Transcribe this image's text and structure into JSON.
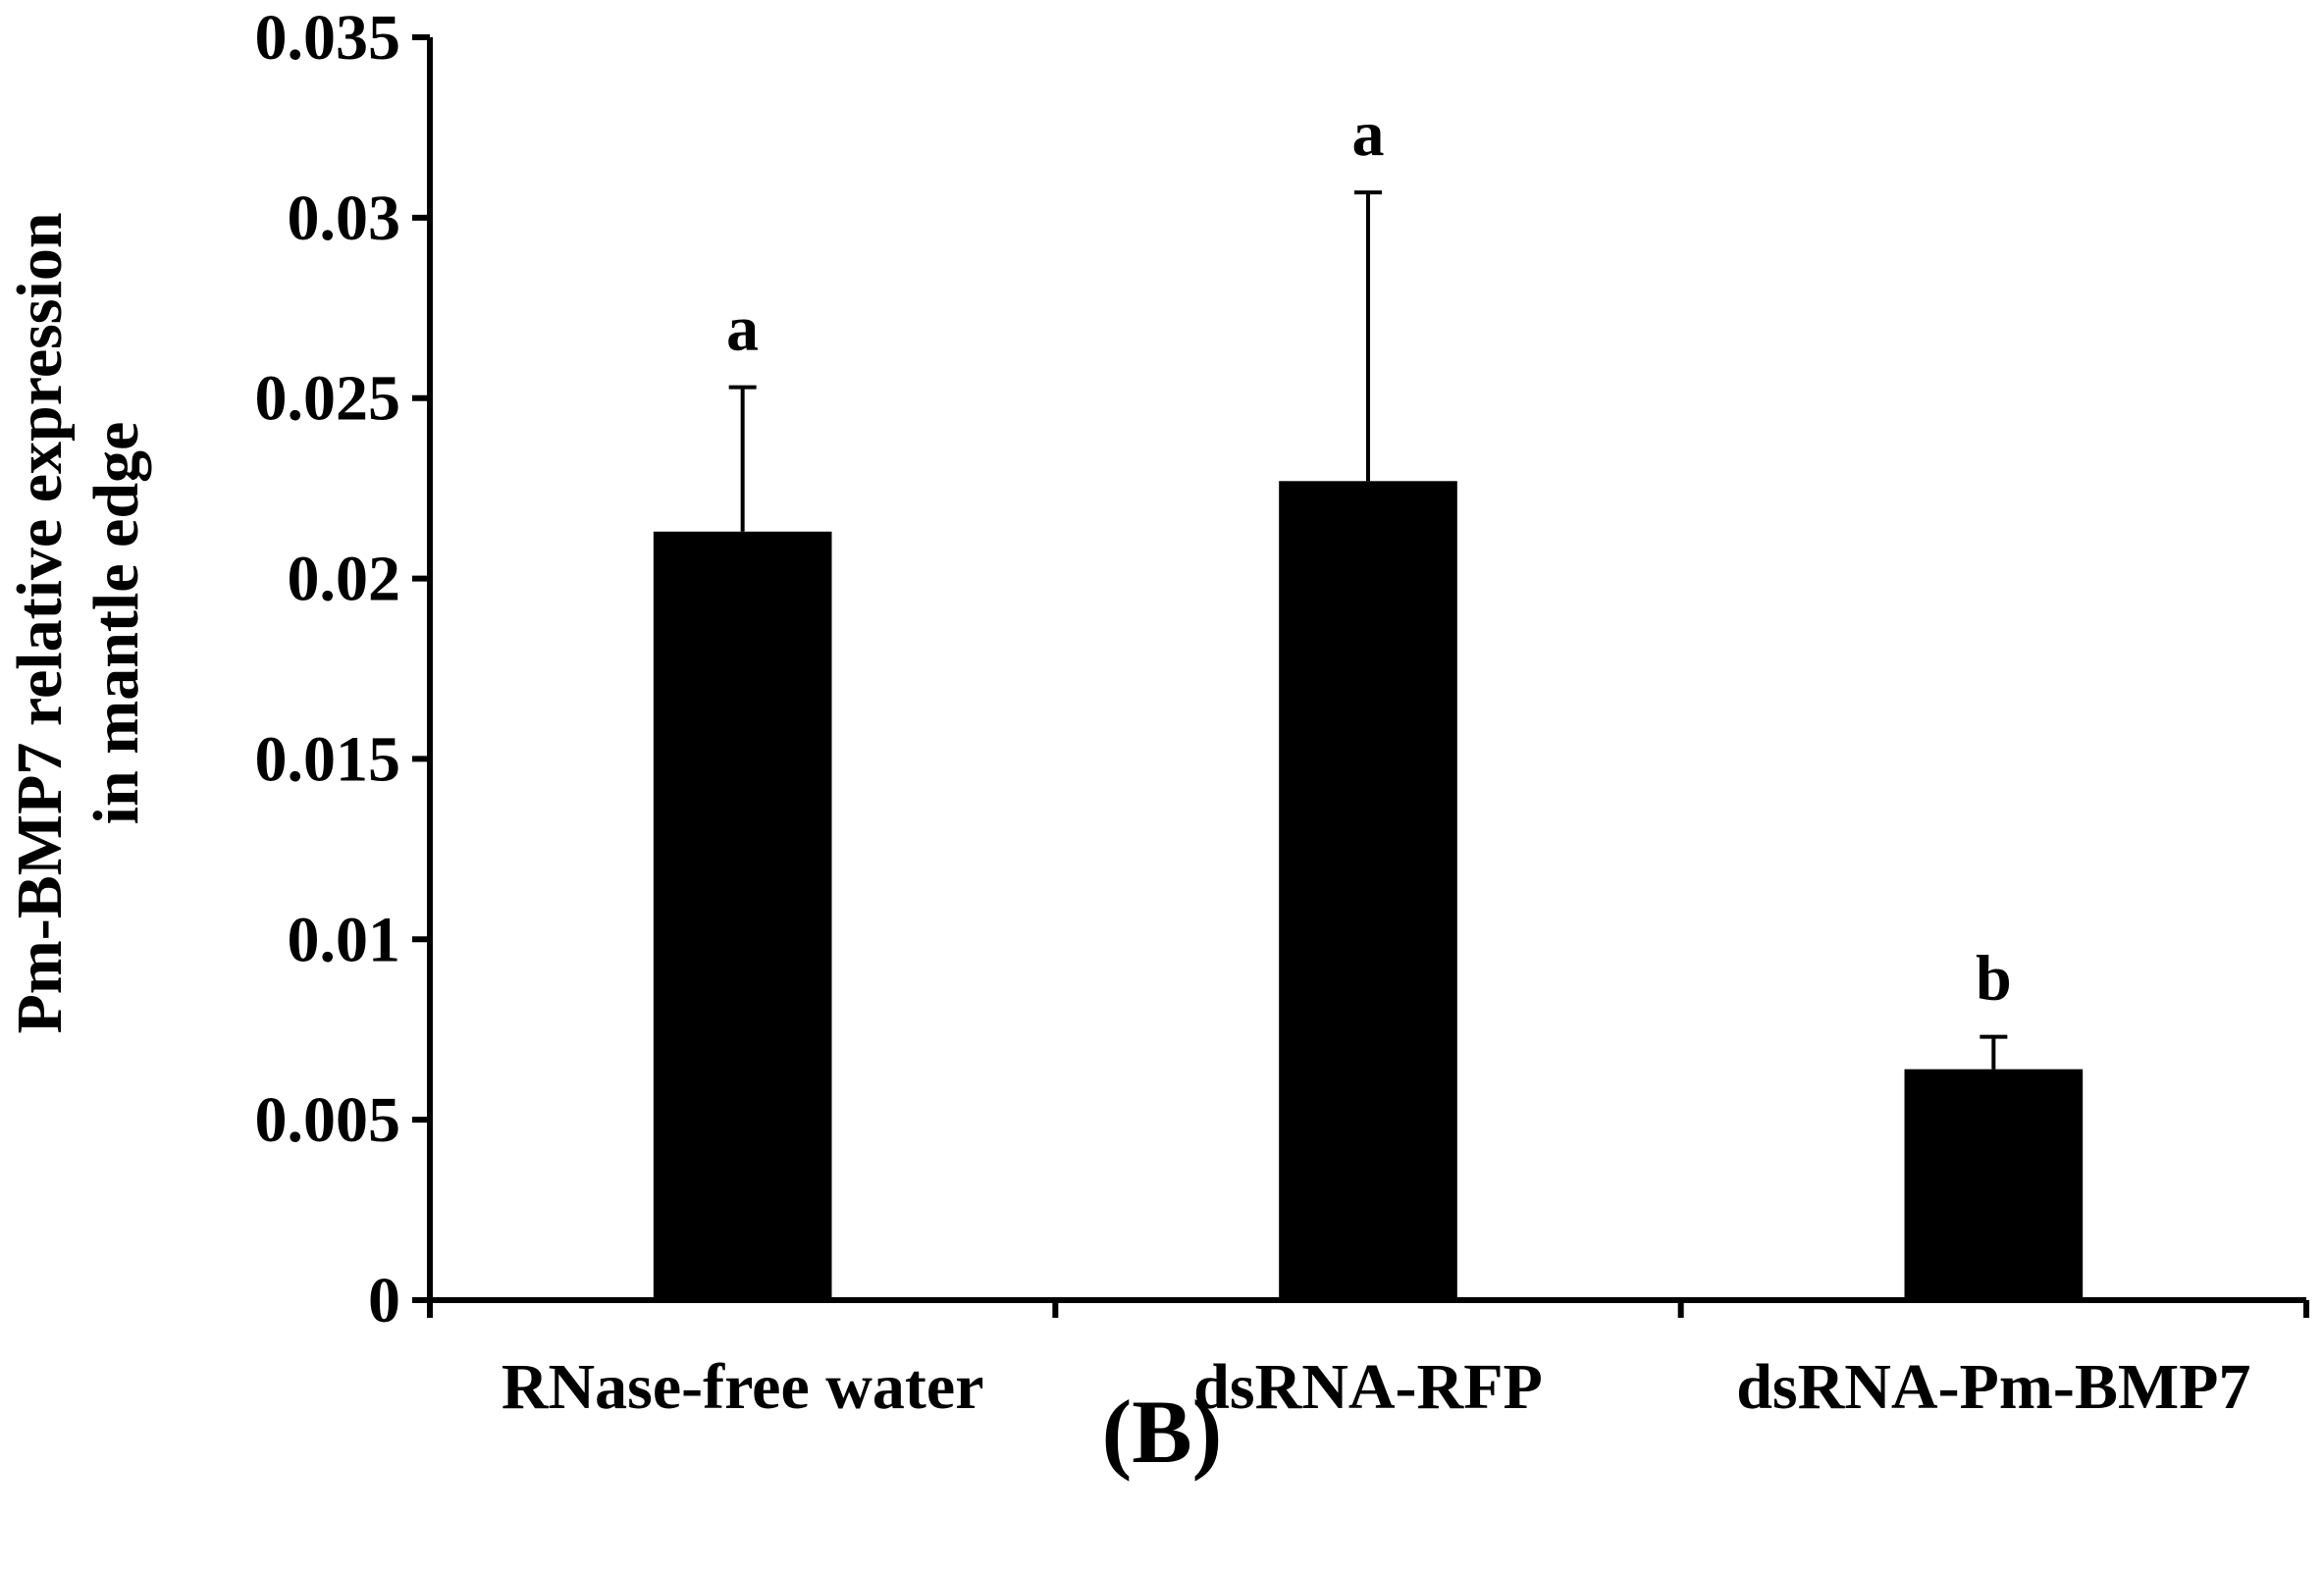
{
  "chart_data": {
    "type": "bar",
    "title": "",
    "panel_label": "(B)",
    "ylabel_lines": [
      "Pm-BMP7 relative expression",
      "in mantle edge"
    ],
    "xlabel": "",
    "categories": [
      "RNase-free water",
      "dsRNA-RFP",
      "dsRNA-Pm-BMP7"
    ],
    "values": [
      0.0213,
      0.0227,
      0.0064
    ],
    "errors": [
      0.004,
      0.008,
      0.0009
    ],
    "significance": [
      "a",
      "a",
      "b"
    ],
    "ylim": [
      0,
      0.035
    ],
    "yticks": [
      0,
      0.005,
      0.01,
      0.015,
      0.02,
      0.025,
      0.03,
      0.035
    ],
    "ytick_labels": [
      "0",
      "0.005",
      "0.01",
      "0.015",
      "0.02",
      "0.025",
      "0.03",
      "0.035"
    ],
    "bar_color": "#000000",
    "grid": false
  }
}
